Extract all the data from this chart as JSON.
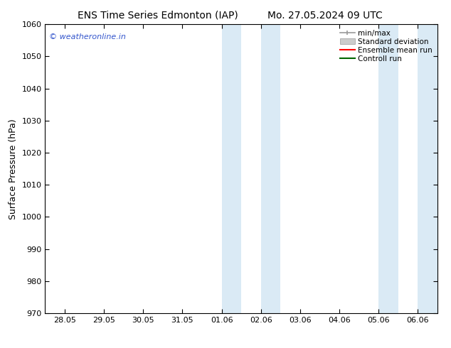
{
  "title_left": "ENS Time Series Edmonton (IAP)",
  "title_right": "Mo. 27.05.2024 09 UTC",
  "ylabel": "Surface Pressure (hPa)",
  "ylim": [
    970,
    1060
  ],
  "yticks": [
    970,
    980,
    990,
    1000,
    1010,
    1020,
    1030,
    1040,
    1050,
    1060
  ],
  "xtick_labels": [
    "28.05",
    "29.05",
    "30.05",
    "31.05",
    "01.06",
    "02.06",
    "03.06",
    "04.06",
    "05.06",
    "06.06"
  ],
  "xtick_positions": [
    0,
    1,
    2,
    3,
    4,
    5,
    6,
    7,
    8,
    9
  ],
  "xlim": [
    -0.5,
    9.5
  ],
  "shaded_regions": [
    {
      "x_start": 4.0,
      "x_end": 4.5
    },
    {
      "x_start": 5.0,
      "x_end": 5.5
    },
    {
      "x_start": 8.0,
      "x_end": 8.5
    },
    {
      "x_start": 9.0,
      "x_end": 9.5
    }
  ],
  "shaded_color": "#daeaf5",
  "background_color": "#ffffff",
  "watermark_text": "© weatheronline.in",
  "watermark_color": "#3355cc",
  "legend_entries": [
    {
      "label": "min/max",
      "color": "#999999"
    },
    {
      "label": "Standard deviation",
      "color": "#cccccc"
    },
    {
      "label": "Ensemble mean run",
      "color": "#ff0000"
    },
    {
      "label": "Controll run",
      "color": "#006600"
    }
  ],
  "font_size_title": 10,
  "font_size_labels": 9,
  "font_size_ticks": 8,
  "font_size_legend": 7.5,
  "font_size_watermark": 8
}
